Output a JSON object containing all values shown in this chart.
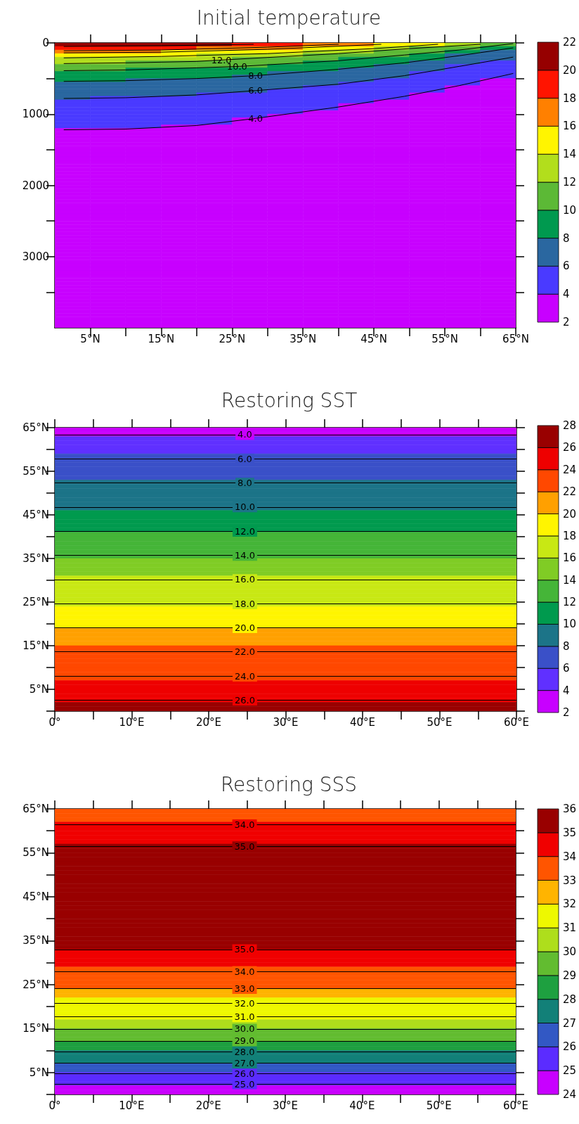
{
  "chart_data": [
    {
      "type": "heatmap",
      "title": "Initial temperature",
      "cells": [
        [
          21,
          21,
          21,
          21,
          21,
          19,
          19,
          17,
          17,
          15,
          15,
          13,
          11
        ],
        [
          19,
          19,
          19,
          19,
          17,
          17,
          17,
          15,
          15,
          13,
          11,
          11,
          9
        ],
        [
          17,
          17,
          17,
          15,
          15,
          15,
          15,
          13,
          13,
          11,
          11,
          9,
          7
        ],
        [
          15,
          15,
          15,
          15,
          13,
          13,
          13,
          11,
          11,
          11,
          9,
          7,
          7
        ],
        [
          13,
          13,
          13,
          13,
          13,
          11,
          11,
          11,
          9,
          9,
          9,
          7,
          7
        ],
        [
          13,
          13,
          11,
          11,
          11,
          11,
          11,
          9,
          9,
          9,
          7,
          7,
          5
        ],
        [
          11,
          11,
          11,
          11,
          11,
          11,
          9,
          9,
          9,
          7,
          7,
          5,
          5
        ],
        [
          11,
          11,
          9,
          9,
          9,
          9,
          9,
          9,
          7,
          7,
          7,
          5,
          5
        ],
        [
          9,
          9,
          9,
          9,
          9,
          9,
          7,
          7,
          7,
          7,
          5,
          5,
          5
        ],
        [
          9,
          9,
          9,
          9,
          9,
          7,
          7,
          7,
          7,
          7,
          5,
          5,
          5
        ],
        [
          9,
          9,
          7,
          7,
          7,
          7,
          7,
          7,
          7,
          5,
          5,
          5,
          3
        ],
        [
          7,
          7,
          7,
          7,
          7,
          7,
          7,
          7,
          5,
          5,
          5,
          5,
          3
        ],
        [
          7,
          7,
          7,
          7,
          7,
          7,
          7,
          5,
          5,
          5,
          5,
          3,
          3
        ],
        [
          7,
          7,
          7,
          7,
          7,
          7,
          5,
          5,
          5,
          5,
          5,
          3,
          3
        ],
        [
          7,
          7,
          7,
          7,
          5,
          5,
          5,
          5,
          5,
          5,
          3,
          3,
          3
        ],
        [
          7,
          5,
          5,
          5,
          5,
          5,
          5,
          5,
          5,
          5,
          3,
          3,
          3
        ],
        [
          5,
          5,
          5,
          5,
          5,
          5,
          5,
          5,
          5,
          3,
          3,
          3,
          3
        ],
        [
          5,
          5,
          5,
          5,
          5,
          5,
          5,
          5,
          3,
          3,
          3,
          3,
          3
        ],
        [
          5,
          5,
          5,
          5,
          5,
          5,
          5,
          5,
          3,
          3,
          3,
          3,
          3
        ],
        [
          5,
          5,
          5,
          5,
          5,
          5,
          5,
          3,
          3,
          3,
          3,
          3,
          3
        ],
        [
          5,
          5,
          5,
          5,
          5,
          5,
          3,
          3,
          3,
          3,
          3,
          3,
          3
        ],
        [
          5,
          5,
          5,
          5,
          5,
          3,
          3,
          3,
          3,
          3,
          3,
          3,
          3
        ],
        [
          5,
          5,
          5,
          5,
          5,
          3,
          3,
          3,
          3,
          3,
          3,
          3,
          3
        ],
        [
          5,
          5,
          5,
          3,
          3,
          3,
          3,
          3,
          3,
          3,
          3,
          3,
          3
        ],
        [
          3,
          3,
          3,
          3,
          3,
          3,
          3,
          3,
          3,
          3,
          3,
          3,
          3
        ],
        [
          3,
          3,
          3,
          3,
          3,
          3,
          3,
          3,
          3,
          3,
          3,
          3,
          3
        ],
        [
          3,
          3,
          3,
          3,
          3,
          3,
          3,
          3,
          3,
          3,
          3,
          3,
          3
        ],
        [
          3,
          3,
          3,
          3,
          3,
          3,
          3,
          3,
          3,
          3,
          3,
          3,
          3
        ],
        [
          3,
          3,
          3,
          3,
          3,
          3,
          3,
          3,
          3,
          3,
          3,
          3,
          3
        ],
        [
          3,
          3,
          3,
          3,
          3,
          3,
          3,
          3,
          3,
          3,
          3,
          3,
          3
        ],
        [
          3,
          3,
          3,
          3,
          3,
          3,
          3,
          3,
          3,
          3,
          3,
          3,
          3
        ],
        [
          3,
          3,
          3,
          3,
          3,
          3,
          3,
          3,
          3,
          3,
          3,
          3,
          3
        ],
        [
          3,
          3,
          3,
          3,
          3,
          3,
          3,
          3,
          3,
          3,
          3,
          3,
          3
        ],
        [
          3,
          3,
          3,
          3,
          3,
          3,
          3,
          3,
          3,
          3,
          3,
          3,
          3
        ],
        [
          3,
          3,
          3,
          3,
          3,
          3,
          3,
          3,
          3,
          3,
          3,
          3,
          3
        ],
        [
          3,
          3,
          3,
          3,
          3,
          3,
          3,
          3,
          3,
          3,
          3,
          3,
          3
        ],
        [
          3,
          3,
          3,
          3,
          3,
          3,
          3,
          3,
          3,
          3,
          3,
          3,
          3
        ],
        [
          3,
          3,
          3,
          3,
          3,
          3,
          3,
          3,
          3,
          3,
          3,
          3,
          3
        ],
        [
          3,
          3,
          3,
          3,
          3,
          3,
          3,
          3,
          3,
          3,
          3,
          3,
          3
        ],
        [
          3,
          3,
          3,
          3,
          3,
          3,
          3,
          3,
          3,
          3,
          3,
          3,
          3
        ],
        [
          3,
          3,
          3,
          3,
          3,
          3,
          3,
          3,
          3,
          3,
          3,
          3,
          3
        ],
        [
          3,
          3,
          3,
          3,
          3,
          3,
          3,
          3,
          3,
          3,
          3,
          3,
          3
        ],
        [
          3,
          3,
          3,
          3,
          3,
          3,
          3,
          3,
          3,
          3,
          3,
          3,
          3
        ],
        [
          3,
          3,
          3,
          3,
          3,
          3,
          3,
          3,
          3,
          3,
          3,
          3,
          3
        ],
        [
          3,
          3,
          3,
          3,
          3,
          3,
          3,
          3,
          3,
          3,
          3,
          3,
          3
        ],
        [
          3,
          3,
          3,
          3,
          3,
          3,
          3,
          3,
          3,
          3,
          3,
          3,
          3
        ],
        [
          3,
          3,
          3,
          3,
          3,
          3,
          3,
          3,
          3,
          3,
          3,
          3,
          3
        ],
        [
          3,
          3,
          3,
          3,
          3,
          3,
          3,
          3,
          3,
          3,
          3,
          3,
          3
        ],
        [
          3,
          3,
          3,
          3,
          3,
          3,
          3,
          3,
          3,
          3,
          3,
          3,
          3
        ],
        [
          3,
          3,
          3,
          3,
          3,
          3,
          3,
          3,
          3,
          3,
          3,
          3,
          3
        ],
        [
          3,
          3,
          3,
          3,
          3,
          3,
          3,
          3,
          3,
          3,
          3,
          3,
          3
        ],
        [
          3,
          3,
          3,
          3,
          3,
          3,
          3,
          3,
          3,
          3,
          3,
          3,
          3
        ],
        [
          3,
          3,
          3,
          3,
          3,
          3,
          3,
          3,
          3,
          3,
          3,
          3,
          3
        ],
        [
          3,
          3,
          3,
          3,
          3,
          3,
          3,
          3,
          3,
          3,
          3,
          3,
          3
        ],
        [
          3,
          3,
          3,
          3,
          3,
          3,
          3,
          3,
          3,
          3,
          3,
          3,
          3
        ],
        [
          3,
          3,
          3,
          3,
          3,
          3,
          3,
          3,
          3,
          3,
          3,
          3,
          3
        ],
        [
          3,
          3,
          3,
          3,
          3,
          3,
          3,
          3,
          3,
          3,
          3,
          3,
          3
        ],
        [
          3,
          3,
          3,
          3,
          3,
          3,
          3,
          3,
          3,
          3,
          3,
          3,
          3
        ],
        [
          3,
          3,
          3,
          3,
          3,
          3,
          3,
          3,
          3,
          3,
          3,
          3,
          3
        ],
        [
          3,
          3,
          3,
          3,
          3,
          3,
          3,
          3,
          3,
          3,
          3,
          3,
          3
        ],
        [
          3,
          3,
          3,
          3,
          3,
          3,
          3,
          3,
          3,
          3,
          3,
          3,
          3
        ],
        [
          3,
          3,
          3,
          3,
          3,
          3,
          3,
          3,
          3,
          3,
          3,
          3,
          3
        ],
        [
          3,
          3,
          3,
          3,
          3,
          3,
          3,
          3,
          3,
          3,
          3,
          3,
          3
        ],
        [
          3,
          3,
          3,
          3,
          3,
          3,
          3,
          3,
          3,
          3,
          3,
          3,
          3
        ],
        [
          3,
          3,
          3,
          3,
          3,
          3,
          3,
          3,
          3,
          3,
          3,
          3,
          3
        ],
        [
          3,
          3,
          3,
          3,
          3,
          3,
          3,
          3,
          3,
          3,
          3,
          3,
          3
        ],
        [
          3,
          3,
          3,
          3,
          3,
          3,
          3,
          3,
          3,
          3,
          3,
          3,
          3
        ],
        [
          3,
          3,
          3,
          3,
          3,
          3,
          3,
          3,
          3,
          3,
          3,
          3,
          3
        ],
        [
          3,
          3,
          3,
          3,
          3,
          3,
          3,
          3,
          3,
          3,
          3,
          3,
          3
        ],
        [
          3,
          3,
          3,
          3,
          3,
          3,
          3,
          3,
          3,
          3,
          3,
          3,
          3
        ],
        [
          3,
          3,
          3,
          3,
          3,
          3,
          3,
          3,
          3,
          3,
          3,
          3,
          3
        ],
        [
          3,
          3,
          3,
          3,
          3,
          3,
          3,
          3,
          3,
          3,
          3,
          3,
          3
        ],
        [
          3,
          3,
          3,
          3,
          3,
          3,
          3,
          3,
          3,
          3,
          3,
          3,
          3
        ],
        [
          3,
          3,
          3,
          3,
          3,
          3,
          3,
          3,
          3,
          3,
          3,
          3,
          3
        ],
        [
          3,
          3,
          3,
          3,
          3,
          3,
          3,
          3,
          3,
          3,
          3,
          3,
          3
        ],
        [
          3,
          3,
          3,
          3,
          3,
          3,
          3,
          3,
          3,
          3,
          3,
          3,
          3
        ],
        [
          3,
          3,
          3,
          3,
          3,
          3,
          3,
          3,
          3,
          3,
          3,
          3,
          3
        ],
        [
          3,
          3,
          3,
          3,
          3,
          3,
          3,
          3,
          3,
          3,
          3,
          3,
          3
        ],
        [
          3,
          3,
          3,
          3,
          3,
          3,
          3,
          3,
          3,
          3,
          3,
          3,
          3
        ],
        [
          3,
          3,
          3,
          3,
          3,
          3,
          3,
          3,
          3,
          3,
          3,
          3,
          3
        ]
      ],
      "clim": [
        2,
        22
      ],
      "cticks": [
        2,
        4,
        6,
        8,
        10,
        12,
        14,
        16,
        18,
        20,
        22
      ],
      "colors": [
        "#c800ff",
        "#4a3aff",
        "#2a67a0",
        "#00994f",
        "#5cb936",
        "#b2de1c",
        "#fff500",
        "#ff8000",
        "#ff1400",
        "#960000"
      ],
      "series": [
        {
          "type": "line",
          "color": "#000000",
          "x": [
            1.3,
            10,
            20,
            28.3,
            40,
            49.3,
            57,
            64.6
          ],
          "values": [
            1220,
            1210,
            1160,
            1060,
            900,
            750,
            600,
            430
          ]
        },
        {
          "type": "line",
          "color": "#000000",
          "x": [
            1.3,
            10,
            20,
            28.3,
            40,
            49.3,
            57,
            64.6
          ],
          "values": [
            780,
            770,
            730,
            670,
            580,
            460,
            330,
            200
          ]
        },
        {
          "type": "line",
          "color": "#000000",
          "x": [
            1.3,
            10,
            20,
            28.3,
            40,
            49.3,
            57,
            64.6
          ],
          "values": [
            540,
            530,
            500,
            460,
            370,
            280,
            180,
            70
          ]
        },
        {
          "type": "line",
          "color": "#000000",
          "x": [
            1.3,
            10,
            20,
            26,
            40,
            49.3,
            57,
            64.6
          ],
          "values": [
            390,
            380,
            350,
            330,
            250,
            170,
            100,
            10
          ]
        },
        {
          "type": "line",
          "color": "#000000",
          "x": [
            1.3,
            10,
            20,
            23.5,
            40,
            50,
            60
          ],
          "values": [
            290,
            280,
            260,
            240,
            150,
            80,
            20
          ]
        },
        {
          "type": "line",
          "color": "#000000",
          "x": [
            1.3,
            15,
            30,
            45,
            54
          ],
          "values": [
            210,
            190,
            150,
            80,
            20
          ]
        },
        {
          "type": "line",
          "color": "#000000",
          "x": [
            1.3,
            15,
            30,
            46
          ],
          "values": [
            140,
            130,
            90,
            20
          ]
        },
        {
          "type": "line",
          "color": "#000000",
          "x": [
            1.3,
            15,
            30,
            40
          ],
          "values": [
            110,
            100,
            60,
            20
          ]
        },
        {
          "type": "line",
          "color": "#000000",
          "x": [
            1.3,
            15,
            28
          ],
          "values": [
            50,
            40,
            20
          ]
        }
      ],
      "annotations": [
        {
          "text": "12.0",
          "x": 23.5,
          "y": 240
        },
        {
          "text": "10.0",
          "x": 25.7,
          "y": 330
        },
        {
          "text": "8.0",
          "x": 28.3,
          "y": 460
        },
        {
          "text": "6.0",
          "x": 28.3,
          "y": 670
        },
        {
          "text": "4.0",
          "x": 28.3,
          "y": 1060
        }
      ],
      "xlim": [
        0,
        65
      ],
      "xticks": [
        {
          "value": 5,
          "label": "5°N"
        },
        {
          "value": 10,
          "label": null
        },
        {
          "value": 15,
          "label": "15°N"
        },
        {
          "value": 20,
          "label": null
        },
        {
          "value": 25,
          "label": "25°N"
        },
        {
          "value": 30,
          "label": null
        },
        {
          "value": 35,
          "label": "35°N"
        },
        {
          "value": 40,
          "label": null
        },
        {
          "value": 45,
          "label": "45°N"
        },
        {
          "value": 50,
          "label": null
        },
        {
          "value": 55,
          "label": "55°N"
        },
        {
          "value": 60,
          "label": null
        },
        {
          "value": 65,
          "label": "65°N"
        }
      ],
      "ylim": [
        4000,
        0
      ],
      "yticks": [
        0,
        {
          "value": 500,
          "label": null
        },
        1000,
        {
          "value": 1500,
          "label": null
        },
        2000,
        {
          "value": 2500,
          "label": null
        },
        3000,
        {
          "value": 3500,
          "label": null
        }
      ]
    },
    {
      "type": "heatmap",
      "title": "Restoring SST",
      "cells": [
        [
          3
        ],
        [
          3
        ],
        [
          5
        ],
        [
          5
        ],
        [
          5
        ],
        [
          5
        ],
        [
          7
        ],
        [
          7
        ],
        [
          7
        ],
        [
          7
        ],
        [
          7
        ],
        [
          7
        ],
        [
          9
        ],
        [
          9
        ],
        [
          9
        ],
        [
          9
        ],
        [
          9
        ],
        [
          9
        ],
        [
          9
        ],
        [
          11
        ],
        [
          11
        ],
        [
          11
        ],
        [
          11
        ],
        [
          11
        ],
        [
          13
        ],
        [
          13
        ],
        [
          13
        ],
        [
          13
        ],
        [
          13
        ],
        [
          13
        ],
        [
          15
        ],
        [
          15
        ],
        [
          15
        ],
        [
          15
        ],
        [
          17
        ],
        [
          17
        ],
        [
          17
        ],
        [
          17
        ],
        [
          17
        ],
        [
          17
        ],
        [
          17
        ],
        [
          19
        ],
        [
          19
        ],
        [
          19
        ],
        [
          19
        ],
        [
          19
        ],
        [
          21
        ],
        [
          21
        ],
        [
          21
        ],
        [
          21
        ],
        [
          23
        ],
        [
          23
        ],
        [
          23
        ],
        [
          23
        ],
        [
          23
        ],
        [
          23
        ],
        [
          23
        ],
        [
          23
        ],
        [
          25
        ],
        [
          25
        ],
        [
          25
        ],
        [
          25
        ],
        [
          25
        ],
        [
          27
        ],
        [
          27
        ]
      ],
      "clim": [
        2,
        28
      ],
      "cticks": [
        2,
        4,
        6,
        8,
        10,
        12,
        14,
        16,
        18,
        20,
        22,
        24,
        26,
        28
      ],
      "colors": [
        "#c800ff",
        "#6030ff",
        "#3a50c8",
        "#1c7488",
        "#009a4e",
        "#45b538",
        "#80cc25",
        "#c8e814",
        "#fff500",
        "#ffa000",
        "#ff4800",
        "#ee0000",
        "#990000"
      ],
      "ref_lines": [
        {
          "axis": "y",
          "value": 63.4
        },
        {
          "axis": "y",
          "value": 57.8
        },
        {
          "axis": "y",
          "value": 52.3
        },
        {
          "axis": "y",
          "value": 46.8
        },
        {
          "axis": "y",
          "value": 41.2
        },
        {
          "axis": "y",
          "value": 35.7
        },
        {
          "axis": "y",
          "value": 30.2
        },
        {
          "axis": "y",
          "value": 24.6
        },
        {
          "axis": "y",
          "value": 19.1
        },
        {
          "axis": "y",
          "value": 13.6
        },
        {
          "axis": "y",
          "value": 8
        },
        {
          "axis": "y",
          "value": 2.5
        }
      ],
      "annotations": [
        {
          "text": "4.0",
          "x": 24.7,
          "y": 63.4
        },
        {
          "text": "6.0",
          "x": 24.7,
          "y": 57.8
        },
        {
          "text": "8.0",
          "x": 24.7,
          "y": 52.3
        },
        {
          "text": "10.0",
          "x": 24.7,
          "y": 46.8
        },
        {
          "text": "12.0",
          "x": 24.7,
          "y": 41.2
        },
        {
          "text": "14.0",
          "x": 24.7,
          "y": 35.7
        },
        {
          "text": "16.0",
          "x": 24.7,
          "y": 30.2
        },
        {
          "text": "18.0",
          "x": 24.7,
          "y": 24.6
        },
        {
          "text": "20.0",
          "x": 24.7,
          "y": 19.1
        },
        {
          "text": "22.0",
          "x": 24.7,
          "y": 13.6
        },
        {
          "text": "24.0",
          "x": 24.7,
          "y": 8
        },
        {
          "text": "26.0",
          "x": 24.7,
          "y": 2.5
        }
      ],
      "xlim": [
        0,
        60
      ],
      "xticks": [
        {
          "value": 0,
          "label": "0°"
        },
        {
          "value": 5,
          "label": null
        },
        {
          "value": 10,
          "label": "10°E"
        },
        {
          "value": 15,
          "label": null
        },
        {
          "value": 20,
          "label": "20°E"
        },
        {
          "value": 25,
          "label": null
        },
        {
          "value": 30,
          "label": "30°E"
        },
        {
          "value": 35,
          "label": null
        },
        {
          "value": 40,
          "label": "40°E"
        },
        {
          "value": 45,
          "label": null
        },
        {
          "value": 50,
          "label": "50°E"
        },
        {
          "value": 55,
          "label": null
        },
        {
          "value": 60,
          "label": "60°E"
        }
      ],
      "ylim": [
        0,
        65
      ],
      "yticks": [
        {
          "value": 0,
          "label": null
        },
        {
          "value": 5,
          "label": "5°N"
        },
        {
          "value": 10,
          "label": null
        },
        {
          "value": 15,
          "label": "15°N"
        },
        {
          "value": 20,
          "label": null
        },
        {
          "value": 25,
          "label": "25°N"
        },
        {
          "value": 30,
          "label": null
        },
        {
          "value": 35,
          "label": "35°N"
        },
        {
          "value": 40,
          "label": null
        },
        {
          "value": 45,
          "label": "45°N"
        },
        {
          "value": 50,
          "label": null
        },
        {
          "value": 55,
          "label": "55°N"
        },
        {
          "value": 60,
          "label": null
        },
        {
          "value": 65,
          "label": "65°N"
        }
      ]
    },
    {
      "type": "heatmap",
      "title": "Restoring SSS",
      "cells": [
        [
          33.5
        ],
        [
          33.5
        ],
        [
          33.5
        ],
        [
          34.5
        ],
        [
          34.5
        ],
        [
          34.5
        ],
        [
          34.5
        ],
        [
          34.5
        ],
        [
          35.5
        ],
        [
          35.5
        ],
        [
          35.5
        ],
        [
          35.5
        ],
        [
          35.5
        ],
        [
          35.5
        ],
        [
          35.5
        ],
        [
          35.5
        ],
        [
          35.5
        ],
        [
          35.5
        ],
        [
          35.5
        ],
        [
          35.5
        ],
        [
          35.5
        ],
        [
          35.5
        ],
        [
          35.5
        ],
        [
          35.5
        ],
        [
          35.5
        ],
        [
          35.5
        ],
        [
          35.5
        ],
        [
          35.5
        ],
        [
          35.5
        ],
        [
          35.5
        ],
        [
          35.5
        ],
        [
          35.5
        ],
        [
          34.5
        ],
        [
          34.5
        ],
        [
          34.5
        ],
        [
          34.5
        ],
        [
          33.5
        ],
        [
          33.5
        ],
        [
          33.5
        ],
        [
          33.5
        ],
        [
          33.5
        ],
        [
          32.5
        ],
        [
          32.5
        ],
        [
          31.5
        ],
        [
          31.5
        ],
        [
          31.5
        ],
        [
          31.5
        ],
        [
          31.5
        ],
        [
          30.5
        ],
        [
          30.5
        ],
        [
          29.5
        ],
        [
          29.5
        ],
        [
          29.5
        ],
        [
          28.5
        ],
        [
          28.5
        ],
        [
          27.5
        ],
        [
          27.5
        ],
        [
          27.5
        ],
        [
          26.5
        ],
        [
          26.5
        ],
        [
          25.5
        ],
        [
          25.5
        ],
        [
          25.5
        ],
        [
          24.5
        ],
        [
          24.5
        ]
      ],
      "clim": [
        24,
        36
      ],
      "cticks": [
        24,
        25,
        26,
        27,
        28,
        29,
        30,
        31,
        32,
        33,
        34,
        35,
        36
      ],
      "colors": [
        "#c800ff",
        "#5b2cff",
        "#3258c4",
        "#128078",
        "#1ea040",
        "#62bc30",
        "#aede1c",
        "#eef800",
        "#ffb400",
        "#ff5500",
        "#f00000",
        "#990000"
      ],
      "ref_lines": [
        {
          "axis": "y",
          "value": 61.4
        },
        {
          "axis": "y",
          "value": 56.4
        },
        {
          "axis": "y",
          "value": 33
        },
        {
          "axis": "y",
          "value": 28
        },
        {
          "axis": "y",
          "value": 24.1
        },
        {
          "axis": "y",
          "value": 20.8
        },
        {
          "axis": "y",
          "value": 17.7
        },
        {
          "axis": "y",
          "value": 14.9
        },
        {
          "axis": "y",
          "value": 12.2
        },
        {
          "axis": "y",
          "value": 9.7
        },
        {
          "axis": "y",
          "value": 7.1
        },
        {
          "axis": "y",
          "value": 4.7
        },
        {
          "axis": "y",
          "value": 2.4
        }
      ],
      "annotations": [
        {
          "text": "34.0",
          "x": 24.7,
          "y": 61.4
        },
        {
          "text": "35.0",
          "x": 24.7,
          "y": 56.4
        },
        {
          "text": "35.0",
          "x": 24.7,
          "y": 33
        },
        {
          "text": "34.0",
          "x": 24.7,
          "y": 28
        },
        {
          "text": "33.0",
          "x": 24.7,
          "y": 24.1
        },
        {
          "text": "32.0",
          "x": 24.7,
          "y": 20.8
        },
        {
          "text": "31.0",
          "x": 24.7,
          "y": 17.7
        },
        {
          "text": "30.0",
          "x": 24.7,
          "y": 14.9
        },
        {
          "text": "29.0",
          "x": 24.7,
          "y": 12.2
        },
        {
          "text": "28.0",
          "x": 24.7,
          "y": 9.7
        },
        {
          "text": "27.0",
          "x": 24.7,
          "y": 7.1
        },
        {
          "text": "26.0",
          "x": 24.7,
          "y": 4.7
        },
        {
          "text": "25.0",
          "x": 24.7,
          "y": 2.4
        }
      ],
      "xlim": [
        0,
        60
      ],
      "xticks": [
        {
          "value": 0,
          "label": "0°"
        },
        {
          "value": 5,
          "label": null
        },
        {
          "value": 10,
          "label": "10°E"
        },
        {
          "value": 15,
          "label": null
        },
        {
          "value": 20,
          "label": "20°E"
        },
        {
          "value": 25,
          "label": null
        },
        {
          "value": 30,
          "label": "30°E"
        },
        {
          "value": 35,
          "label": null
        },
        {
          "value": 40,
          "label": "40°E"
        },
        {
          "value": 45,
          "label": null
        },
        {
          "value": 50,
          "label": "50°E"
        },
        {
          "value": 55,
          "label": null
        },
        {
          "value": 60,
          "label": "60°E"
        }
      ],
      "ylim": [
        0,
        65
      ],
      "yticks": [
        {
          "value": 0,
          "label": null
        },
        {
          "value": 5,
          "label": "5°N"
        },
        {
          "value": 10,
          "label": null
        },
        {
          "value": 15,
          "label": "15°N"
        },
        {
          "value": 20,
          "label": null
        },
        {
          "value": 25,
          "label": "25°N"
        },
        {
          "value": 30,
          "label": null
        },
        {
          "value": 35,
          "label": "35°N"
        },
        {
          "value": 40,
          "label": null
        },
        {
          "value": 45,
          "label": "45°N"
        },
        {
          "value": 50,
          "label": null
        },
        {
          "value": 55,
          "label": "55°N"
        },
        {
          "value": 60,
          "label": null
        },
        {
          "value": 65,
          "label": "65°N"
        }
      ]
    }
  ]
}
